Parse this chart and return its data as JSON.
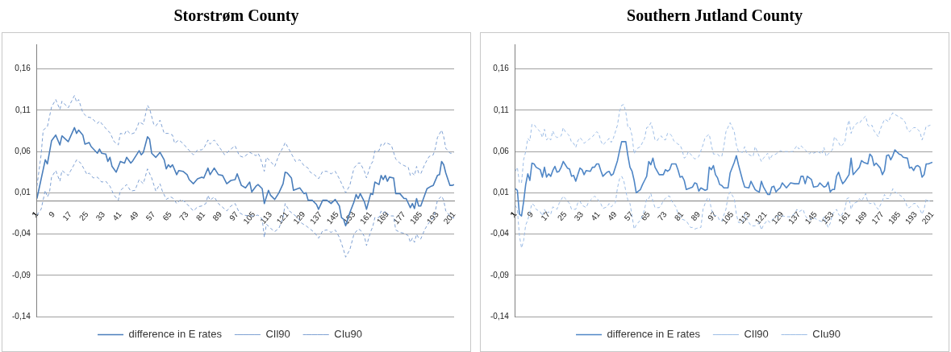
{
  "chart_data": [
    {
      "type": "line",
      "title": "Storstrøm County",
      "legend": "bottom",
      "grid": "y",
      "xlim": [
        1,
        201
      ],
      "xticks": [
        1,
        9,
        17,
        25,
        33,
        41,
        49,
        57,
        65,
        73,
        81,
        89,
        97,
        105,
        113,
        121,
        129,
        137,
        145,
        153,
        161,
        169,
        177,
        185,
        193,
        201
      ],
      "ylim": [
        -0.14,
        0.19
      ],
      "yticks": [
        {
          "value": -0.14,
          "label": "-0,14"
        },
        {
          "value": -0.09,
          "label": "-0,09"
        },
        {
          "value": -0.04,
          "label": "-0,04"
        },
        {
          "value": 0.01,
          "label": "0,01"
        },
        {
          "value": 0.06,
          "label": "0,06"
        },
        {
          "value": 0.11,
          "label": "0,11"
        },
        {
          "value": 0.16,
          "label": "0,16"
        }
      ],
      "series": [
        {
          "name": "difference in E rates",
          "color": "#4a7ebb",
          "line_style": "solid",
          "x": [
            1,
            5,
            6,
            8,
            10,
            12,
            13,
            16,
            19,
            20,
            21,
            23,
            24,
            26,
            27,
            30,
            31,
            32,
            34,
            35,
            36,
            37,
            39,
            41,
            43,
            44,
            46,
            47,
            50,
            51,
            52,
            54,
            55,
            56,
            58,
            60,
            62,
            63,
            64,
            65,
            66,
            68,
            69,
            71,
            73,
            74,
            76,
            78,
            80,
            81,
            83,
            84,
            86,
            88,
            90,
            92,
            94,
            96,
            97,
            99,
            101,
            103,
            104,
            106,
            107,
            109,
            110,
            112,
            113,
            115,
            117,
            119,
            120,
            121,
            123,
            124,
            127,
            129,
            130,
            131,
            133,
            135,
            136,
            138,
            140,
            142,
            144,
            146,
            147,
            148,
            149,
            151,
            153,
            154,
            155,
            156,
            158,
            159,
            161,
            162,
            163,
            165,
            166,
            167,
            168,
            169,
            170,
            172,
            173,
            175,
            177,
            178,
            180,
            181,
            182,
            183,
            184,
            185,
            188,
            190,
            191,
            193,
            194,
            195,
            196,
            197,
            199,
            200,
            201
          ],
          "values": [
            0.003,
            0.05,
            0.045,
            0.073,
            0.08,
            0.068,
            0.079,
            0.072,
            0.089,
            0.082,
            0.086,
            0.08,
            0.069,
            0.071,
            0.066,
            0.058,
            0.063,
            0.058,
            0.057,
            0.048,
            0.053,
            0.042,
            0.035,
            0.048,
            0.046,
            0.053,
            0.046,
            0.049,
            0.061,
            0.056,
            0.059,
            0.078,
            0.075,
            0.058,
            0.053,
            0.059,
            0.05,
            0.039,
            0.044,
            0.041,
            0.044,
            0.032,
            0.037,
            0.036,
            0.032,
            0.026,
            0.021,
            0.027,
            0.029,
            0.028,
            0.04,
            0.032,
            0.04,
            0.032,
            0.031,
            0.021,
            0.025,
            0.026,
            0.033,
            0.019,
            0.016,
            0.023,
            0.011,
            0.018,
            0.02,
            0.015,
            -0.003,
            0.013,
            0.007,
            0.002,
            0.01,
            0.021,
            0.035,
            0.034,
            0.028,
            0.013,
            0.016,
            0.009,
            0.01,
            0.001,
            0.001,
            -0.004,
            -0.01,
            0.001,
            0.001,
            -0.003,
            0.002,
            -0.006,
            -0.02,
            -0.022,
            -0.03,
            -0.014,
            -0.001,
            0.008,
            0.003,
            0.009,
            -0.001,
            -0.01,
            0.009,
            0.008,
            0.023,
            0.02,
            0.031,
            0.026,
            0.031,
            0.024,
            0.029,
            0.028,
            0.009,
            0.009,
            0.003,
            0.003,
            -0.008,
            -0.003,
            -0.009,
            0.003,
            -0.006,
            -0.006,
            0.015,
            0.018,
            0.019,
            0.031,
            0.032,
            0.048,
            0.044,
            0.034,
            0.019,
            0.019,
            0.02
          ]
        },
        {
          "name": "CIl90",
          "color": "#7fa1d3",
          "line_style": "dashed",
          "x": [
            1,
            3,
            5,
            6,
            7,
            8,
            10,
            12,
            13,
            16,
            17,
            19,
            20,
            22,
            24,
            25,
            26,
            28,
            30,
            32,
            34,
            36,
            38,
            40,
            41,
            42,
            44,
            46,
            48,
            50,
            52,
            54,
            56,
            58,
            60,
            61,
            63,
            65,
            66,
            68,
            70,
            72,
            76,
            78,
            80,
            82,
            83,
            84,
            86,
            88,
            92,
            94,
            96,
            98,
            100,
            103,
            105,
            107,
            109,
            110,
            111,
            113,
            115,
            117,
            119,
            120,
            122,
            124,
            126,
            128,
            130,
            132,
            134,
            136,
            138,
            140,
            142,
            144,
            146,
            148,
            149,
            151,
            153,
            155,
            156,
            158,
            159,
            161,
            162,
            163,
            165,
            166,
            167,
            168,
            170,
            172,
            173,
            175,
            177,
            179,
            180,
            181,
            182,
            183,
            184,
            185,
            187,
            189,
            191,
            192,
            193,
            195,
            196,
            197,
            199,
            201
          ],
          "values": [
            -0.017,
            -0.01,
            0.013,
            0.005,
            0.01,
            0.029,
            0.037,
            0.024,
            0.037,
            0.031,
            0.036,
            0.045,
            0.05,
            0.046,
            0.037,
            0.032,
            0.034,
            0.028,
            0.029,
            0.023,
            0.024,
            0.018,
            0.007,
            0.001,
            0.013,
            0.015,
            0.02,
            0.012,
            0.013,
            0.026,
            0.021,
            0.039,
            0.028,
            0.012,
            0.021,
            0.013,
            0.002,
            0.005,
            0.004,
            -0.003,
            0.002,
            -0.001,
            -0.012,
            -0.007,
            -0.006,
            -0.003,
            0.007,
            0.001,
            0.005,
            -0.003,
            -0.012,
            -0.006,
            -0.003,
            -0.014,
            -0.017,
            -0.018,
            -0.018,
            -0.017,
            -0.022,
            -0.044,
            -0.028,
            -0.033,
            -0.037,
            -0.033,
            -0.02,
            -0.003,
            -0.012,
            -0.016,
            -0.02,
            -0.027,
            -0.03,
            -0.034,
            -0.038,
            -0.045,
            -0.036,
            -0.035,
            -0.038,
            -0.035,
            -0.044,
            -0.059,
            -0.068,
            -0.059,
            -0.04,
            -0.034,
            -0.035,
            -0.043,
            -0.054,
            -0.037,
            -0.031,
            -0.02,
            -0.02,
            -0.012,
            -0.015,
            -0.012,
            -0.018,
            -0.018,
            -0.035,
            -0.038,
            -0.039,
            -0.042,
            -0.05,
            -0.045,
            -0.05,
            -0.04,
            -0.045,
            -0.046,
            -0.034,
            -0.026,
            -0.02,
            -0.012,
            0.001,
            0.006,
            0.001,
            -0.012,
            -0.018,
            -0.021
          ]
        },
        {
          "name": "CIu90",
          "color": "#7fa1d3",
          "line_style": "dashed",
          "x": [
            1,
            3,
            4,
            6,
            8,
            10,
            12,
            13,
            16,
            17,
            19,
            20,
            21,
            23,
            25,
            27,
            30,
            31,
            33,
            35,
            36,
            38,
            40,
            41,
            43,
            44,
            46,
            48,
            50,
            52,
            54,
            55,
            57,
            58,
            60,
            62,
            64,
            66,
            67,
            69,
            71,
            73,
            76,
            78,
            80,
            81,
            83,
            84,
            86,
            88,
            91,
            94,
            96,
            98,
            100,
            103,
            106,
            107,
            108,
            110,
            111,
            113,
            115,
            117,
            119,
            120,
            122,
            125,
            127,
            129,
            131,
            132,
            134,
            136,
            138,
            140,
            142,
            144,
            146,
            148,
            149,
            151,
            153,
            155,
            156,
            158,
            159,
            161,
            162,
            163,
            165,
            166,
            167,
            168,
            170,
            171,
            173,
            175,
            177,
            179,
            180,
            181,
            182,
            183,
            184,
            185,
            187,
            189,
            191,
            192,
            193,
            195,
            196,
            197,
            199,
            200,
            201
          ],
          "values": [
            0.018,
            0.056,
            0.086,
            0.09,
            0.114,
            0.123,
            0.111,
            0.121,
            0.113,
            0.118,
            0.128,
            0.12,
            0.123,
            0.107,
            0.102,
            0.101,
            0.094,
            0.097,
            0.091,
            0.085,
            0.083,
            0.072,
            0.068,
            0.082,
            0.081,
            0.086,
            0.081,
            0.083,
            0.096,
            0.093,
            0.116,
            0.112,
            0.093,
            0.091,
            0.098,
            0.082,
            0.082,
            0.08,
            0.07,
            0.074,
            0.07,
            0.064,
            0.056,
            0.062,
            0.062,
            0.064,
            0.074,
            0.069,
            0.074,
            0.067,
            0.056,
            0.063,
            0.067,
            0.055,
            0.053,
            0.059,
            0.055,
            0.058,
            0.053,
            0.036,
            0.053,
            0.048,
            0.042,
            0.056,
            0.065,
            0.071,
            0.062,
            0.048,
            0.05,
            0.043,
            0.04,
            0.035,
            0.032,
            0.027,
            0.036,
            0.036,
            0.033,
            0.036,
            0.027,
            0.016,
            0.01,
            0.019,
            0.04,
            0.046,
            0.046,
            0.036,
            0.028,
            0.044,
            0.048,
            0.061,
            0.061,
            0.069,
            0.067,
            0.071,
            0.069,
            0.067,
            0.051,
            0.046,
            0.043,
            0.041,
            0.031,
            0.034,
            0.031,
            0.042,
            0.034,
            0.033,
            0.045,
            0.054,
            0.056,
            0.064,
            0.077,
            0.086,
            0.078,
            0.064,
            0.058,
            0.058,
            0.059
          ]
        }
      ]
    },
    {
      "type": "line",
      "title": "Southern Jutland County",
      "legend": "bottom",
      "grid": "y",
      "xlim": [
        1,
        201
      ],
      "xticks": [
        1,
        9,
        17,
        25,
        33,
        41,
        49,
        57,
        65,
        73,
        81,
        89,
        97,
        105,
        113,
        121,
        129,
        137,
        145,
        153,
        161,
        169,
        177,
        185,
        193,
        201
      ],
      "ylim": [
        -0.14,
        0.19
      ],
      "yticks": [
        {
          "value": -0.14,
          "label": "-0,14"
        },
        {
          "value": -0.09,
          "label": "-0,09"
        },
        {
          "value": -0.04,
          "label": "-0,04"
        },
        {
          "value": 0.01,
          "label": "0,01"
        },
        {
          "value": 0.06,
          "label": "0,06"
        },
        {
          "value": 0.11,
          "label": "0,11"
        },
        {
          "value": 0.16,
          "label": "0,16"
        }
      ],
      "series": [
        {
          "name": "difference in E rates",
          "color": "#4f86c6",
          "line_style": "solid",
          "x": [
            1,
            2,
            3,
            4,
            5,
            6,
            7,
            8,
            9,
            10,
            11,
            13,
            14,
            15,
            16,
            17,
            18,
            19,
            20,
            21,
            22,
            23,
            24,
            25,
            26,
            27,
            28,
            29,
            30,
            31,
            32,
            33,
            34,
            35,
            37,
            38,
            39,
            40,
            41,
            42,
            43,
            45,
            46,
            47,
            48,
            50,
            51,
            52,
            54,
            55,
            56,
            57,
            58,
            59,
            61,
            62,
            63,
            64,
            65,
            66,
            67,
            68,
            70,
            71,
            72,
            73,
            74,
            75,
            76,
            78,
            79,
            80,
            81,
            82,
            83,
            84,
            86,
            87,
            88,
            89,
            90,
            92,
            93,
            94,
            95,
            96,
            97,
            98,
            99,
            100,
            101,
            103,
            104,
            106,
            107,
            108,
            110,
            111,
            113,
            114,
            116,
            117,
            118,
            119,
            120,
            122,
            123,
            124,
            125,
            126,
            127,
            128,
            129,
            131,
            133,
            135,
            136,
            137,
            138,
            139,
            140,
            141,
            143,
            144,
            146,
            147,
            149,
            150,
            151,
            152,
            153,
            154,
            155,
            156,
            157,
            158,
            159,
            161,
            162,
            163,
            165,
            166,
            167,
            168,
            170,
            171,
            172,
            173,
            174,
            176,
            177,
            178,
            179,
            180,
            181,
            182,
            183,
            185,
            186,
            187,
            189,
            190,
            191,
            192,
            193,
            194,
            195,
            196,
            197,
            198,
            199,
            201
          ],
          "values": [
            0.015,
            0.013,
            -0.016,
            -0.018,
            -0.001,
            0.02,
            0.033,
            0.025,
            0.046,
            0.045,
            0.041,
            0.038,
            0.029,
            0.041,
            0.029,
            0.033,
            0.03,
            0.037,
            0.042,
            0.035,
            0.036,
            0.041,
            0.048,
            0.044,
            0.04,
            0.039,
            0.03,
            0.031,
            0.024,
            0.032,
            0.04,
            0.038,
            0.032,
            0.037,
            0.036,
            0.041,
            0.041,
            0.045,
            0.045,
            0.037,
            0.03,
            0.035,
            0.036,
            0.031,
            0.033,
            0.049,
            0.061,
            0.072,
            0.072,
            0.055,
            0.041,
            0.036,
            0.025,
            0.01,
            0.014,
            0.02,
            0.025,
            0.03,
            0.048,
            0.044,
            0.052,
            0.041,
            0.032,
            0.032,
            0.032,
            0.038,
            0.036,
            0.038,
            0.045,
            0.045,
            0.038,
            0.029,
            0.03,
            0.025,
            0.014,
            0.015,
            0.017,
            0.022,
            0.021,
            0.012,
            0.016,
            0.013,
            0.014,
            0.041,
            0.038,
            0.043,
            0.032,
            0.028,
            0.02,
            0.019,
            0.016,
            0.016,
            0.034,
            0.047,
            0.055,
            0.044,
            0.025,
            0.017,
            0.016,
            0.024,
            0.014,
            0.012,
            0.011,
            0.024,
            0.017,
            0.008,
            0.008,
            0.017,
            0.018,
            0.011,
            0.014,
            0.016,
            0.022,
            0.016,
            0.022,
            0.021,
            0.021,
            0.021,
            0.03,
            0.03,
            0.021,
            0.03,
            0.026,
            0.017,
            0.018,
            0.022,
            0.017,
            0.018,
            0.023,
            0.011,
            0.014,
            0.014,
            0.03,
            0.035,
            0.027,
            0.021,
            0.024,
            0.032,
            0.052,
            0.032,
            0.038,
            0.041,
            0.049,
            0.047,
            0.045,
            0.057,
            0.054,
            0.043,
            0.046,
            0.04,
            0.032,
            0.037,
            0.055,
            0.056,
            0.05,
            0.055,
            0.062,
            0.057,
            0.056,
            0.053,
            0.052,
            0.04,
            0.041,
            0.037,
            0.042,
            0.043,
            0.041,
            0.029,
            0.032,
            0.045,
            0.045,
            0.047
          ]
        },
        {
          "name": "CIl90",
          "color": "#9dbde6",
          "line_style": "dashed",
          "x": [
            1,
            2,
            3,
            4,
            5,
            6,
            7,
            8,
            9,
            10,
            11,
            13,
            14,
            15,
            16,
            17,
            18,
            19,
            21,
            22,
            24,
            25,
            27,
            28,
            30,
            31,
            32,
            33,
            35,
            36,
            37,
            39,
            40,
            42,
            43,
            45,
            46,
            47,
            49,
            50,
            51,
            52,
            53,
            54,
            55,
            56,
            57,
            58,
            59,
            61,
            62,
            63,
            64,
            65,
            66,
            67,
            68,
            70,
            71,
            72,
            73,
            74,
            75,
            76,
            78,
            79,
            80,
            81,
            82,
            83,
            85,
            86,
            87,
            88,
            90,
            91,
            92,
            93,
            94,
            95,
            96,
            98,
            99,
            100,
            102,
            103,
            104,
            106,
            107,
            108,
            110,
            111,
            113,
            114,
            116,
            118,
            119,
            120,
            122,
            123,
            124,
            126,
            127,
            129,
            131,
            133,
            135,
            136,
            137,
            139,
            140,
            142,
            144,
            146,
            148,
            149,
            151,
            152,
            153,
            155,
            156,
            157,
            159,
            160,
            161,
            162,
            163,
            165,
            166,
            167,
            169,
            170,
            171,
            173,
            174,
            175,
            177,
            178,
            179,
            180,
            181,
            182,
            183,
            185,
            187,
            188,
            189,
            190,
            192,
            193,
            195,
            196,
            197,
            198,
            199,
            201
          ],
          "values": [
            -0.005,
            -0.01,
            -0.042,
            -0.057,
            -0.048,
            -0.029,
            -0.023,
            -0.013,
            -0.003,
            -0.005,
            -0.01,
            -0.013,
            -0.018,
            -0.01,
            -0.015,
            -0.013,
            -0.016,
            -0.007,
            -0.01,
            -0.003,
            0.006,
            0.003,
            -0.003,
            -0.01,
            -0.01,
            -0.002,
            0,
            -0.005,
            -0.008,
            -0.002,
            0.001,
            0.006,
            0.004,
            -0.003,
            -0.009,
            -0.007,
            -0.003,
            -0.007,
            -0.002,
            0.016,
            0.027,
            0.03,
            0.025,
            0.012,
            0.001,
            -0.003,
            -0.018,
            -0.034,
            -0.029,
            -0.023,
            -0.018,
            -0.01,
            0.003,
            0.003,
            0.009,
            0,
            -0.008,
            -0.008,
            -0.005,
            0.001,
            0.003,
            0.006,
            0.006,
            0,
            -0.007,
            -0.015,
            -0.018,
            -0.022,
            -0.023,
            -0.024,
            -0.032,
            -0.032,
            -0.034,
            -0.033,
            -0.032,
            -0.01,
            -0.003,
            0.003,
            0.004,
            -0.01,
            -0.017,
            -0.018,
            -0.024,
            -0.024,
            -0.01,
            0.006,
            0.011,
            0.003,
            -0.016,
            -0.026,
            -0.026,
            -0.016,
            -0.026,
            -0.03,
            -0.03,
            -0.026,
            -0.035,
            -0.029,
            -0.023,
            -0.026,
            -0.023,
            -0.019,
            -0.018,
            -0.018,
            -0.019,
            -0.019,
            -0.015,
            -0.01,
            -0.013,
            -0.01,
            -0.018,
            -0.023,
            -0.02,
            -0.023,
            -0.025,
            -0.019,
            -0.032,
            -0.027,
            -0.016,
            -0.01,
            -0.016,
            -0.019,
            -0.01,
            0.003,
            0.004,
            -0.01,
            -0.003,
            -0.001,
            0.003,
            0,
            0.009,
            -0.001,
            -0.003,
            -0.002,
            -0.007,
            -0.01,
            0,
            0.008,
            0.003,
            0.003,
            0.008,
            0.015,
            0.011,
            0.008,
            0.004,
            0,
            -0.008,
            -0.008,
            -0.003,
            -0.003,
            -0.01,
            -0.016,
            -0.01,
            0.003,
            0,
            0.001
          ]
        },
        {
          "name": "CIu90",
          "color": "#9dbde6",
          "line_style": "dashed",
          "x": [
            1,
            2,
            3,
            4,
            5,
            6,
            7,
            8,
            9,
            10,
            11,
            13,
            14,
            15,
            16,
            17,
            18,
            19,
            20,
            21,
            23,
            24,
            25,
            27,
            28,
            29,
            30,
            31,
            32,
            33,
            34,
            36,
            37,
            38,
            40,
            41,
            42,
            43,
            45,
            46,
            47,
            48,
            50,
            51,
            52,
            53,
            54,
            55,
            56,
            57,
            58,
            59,
            61,
            62,
            63,
            64,
            65,
            66,
            67,
            68,
            69,
            70,
            71,
            72,
            73,
            74,
            75,
            76,
            77,
            79,
            80,
            81,
            82,
            83,
            84,
            86,
            87,
            88,
            89,
            91,
            92,
            93,
            94,
            95,
            96,
            98,
            99,
            100,
            101,
            102,
            104,
            106,
            107,
            108,
            110,
            111,
            112,
            114,
            115,
            116,
            118,
            119,
            120,
            122,
            123,
            124,
            126,
            128,
            129,
            130,
            132,
            134,
            136,
            137,
            138,
            140,
            142,
            143,
            144,
            146,
            148,
            149,
            150,
            151,
            153,
            154,
            156,
            157,
            159,
            160,
            161,
            162,
            163,
            165,
            166,
            167,
            169,
            170,
            171,
            172,
            173,
            175,
            176,
            178,
            179,
            180,
            181,
            182,
            183,
            185,
            187,
            188,
            189,
            190,
            192,
            193,
            195,
            196,
            197,
            198,
            199,
            200
          ],
          "values": [
            0.036,
            0.041,
            0.022,
            0.022,
            0.05,
            0.06,
            0.076,
            0.073,
            0.093,
            0.093,
            0.089,
            0.084,
            0.077,
            0.087,
            0.074,
            0.077,
            0.074,
            0.085,
            0.079,
            0.077,
            0.079,
            0.089,
            0.084,
            0.079,
            0.071,
            0.07,
            0.065,
            0.073,
            0.077,
            0.074,
            0.07,
            0.074,
            0.076,
            0.078,
            0.084,
            0.082,
            0.073,
            0.068,
            0.073,
            0.076,
            0.071,
            0.076,
            0.092,
            0.109,
            0.116,
            0.117,
            0.108,
            0.089,
            0.089,
            0.079,
            0.057,
            0.063,
            0.066,
            0.071,
            0.076,
            0.089,
            0.09,
            0.095,
            0.086,
            0.074,
            0.073,
            0.077,
            0.079,
            0.075,
            0.074,
            0.082,
            0.082,
            0.079,
            0.073,
            0.069,
            0.068,
            0.062,
            0.052,
            0.054,
            0.06,
            0.054,
            0.051,
            0.052,
            0.054,
            0.068,
            0.077,
            0.079,
            0.081,
            0.068,
            0.057,
            0.057,
            0.054,
            0.054,
            0.066,
            0.084,
            0.095,
            0.084,
            0.068,
            0.06,
            0.059,
            0.066,
            0.058,
            0.055,
            0.054,
            0.066,
            0.054,
            0.048,
            0.052,
            0.058,
            0.05,
            0.055,
            0.057,
            0.061,
            0.06,
            0.06,
            0.06,
            0.06,
            0.067,
            0.063,
            0.067,
            0.062,
            0.057,
            0.06,
            0.058,
            0.06,
            0.057,
            0.065,
            0.054,
            0.057,
            0.062,
            0.078,
            0.071,
            0.066,
            0.071,
            0.089,
            0.098,
            0.082,
            0.089,
            0.095,
            0.094,
            0.098,
            0.103,
            0.092,
            0.09,
            0.092,
            0.085,
            0.078,
            0.087,
            0.099,
            0.098,
            0.096,
            0.103,
            0.107,
            0.105,
            0.102,
            0.099,
            0.095,
            0.086,
            0.084,
            0.089,
            0.089,
            0.084,
            0.074,
            0.081,
            0.091,
            0.091,
            0.092
          ]
        }
      ]
    }
  ]
}
